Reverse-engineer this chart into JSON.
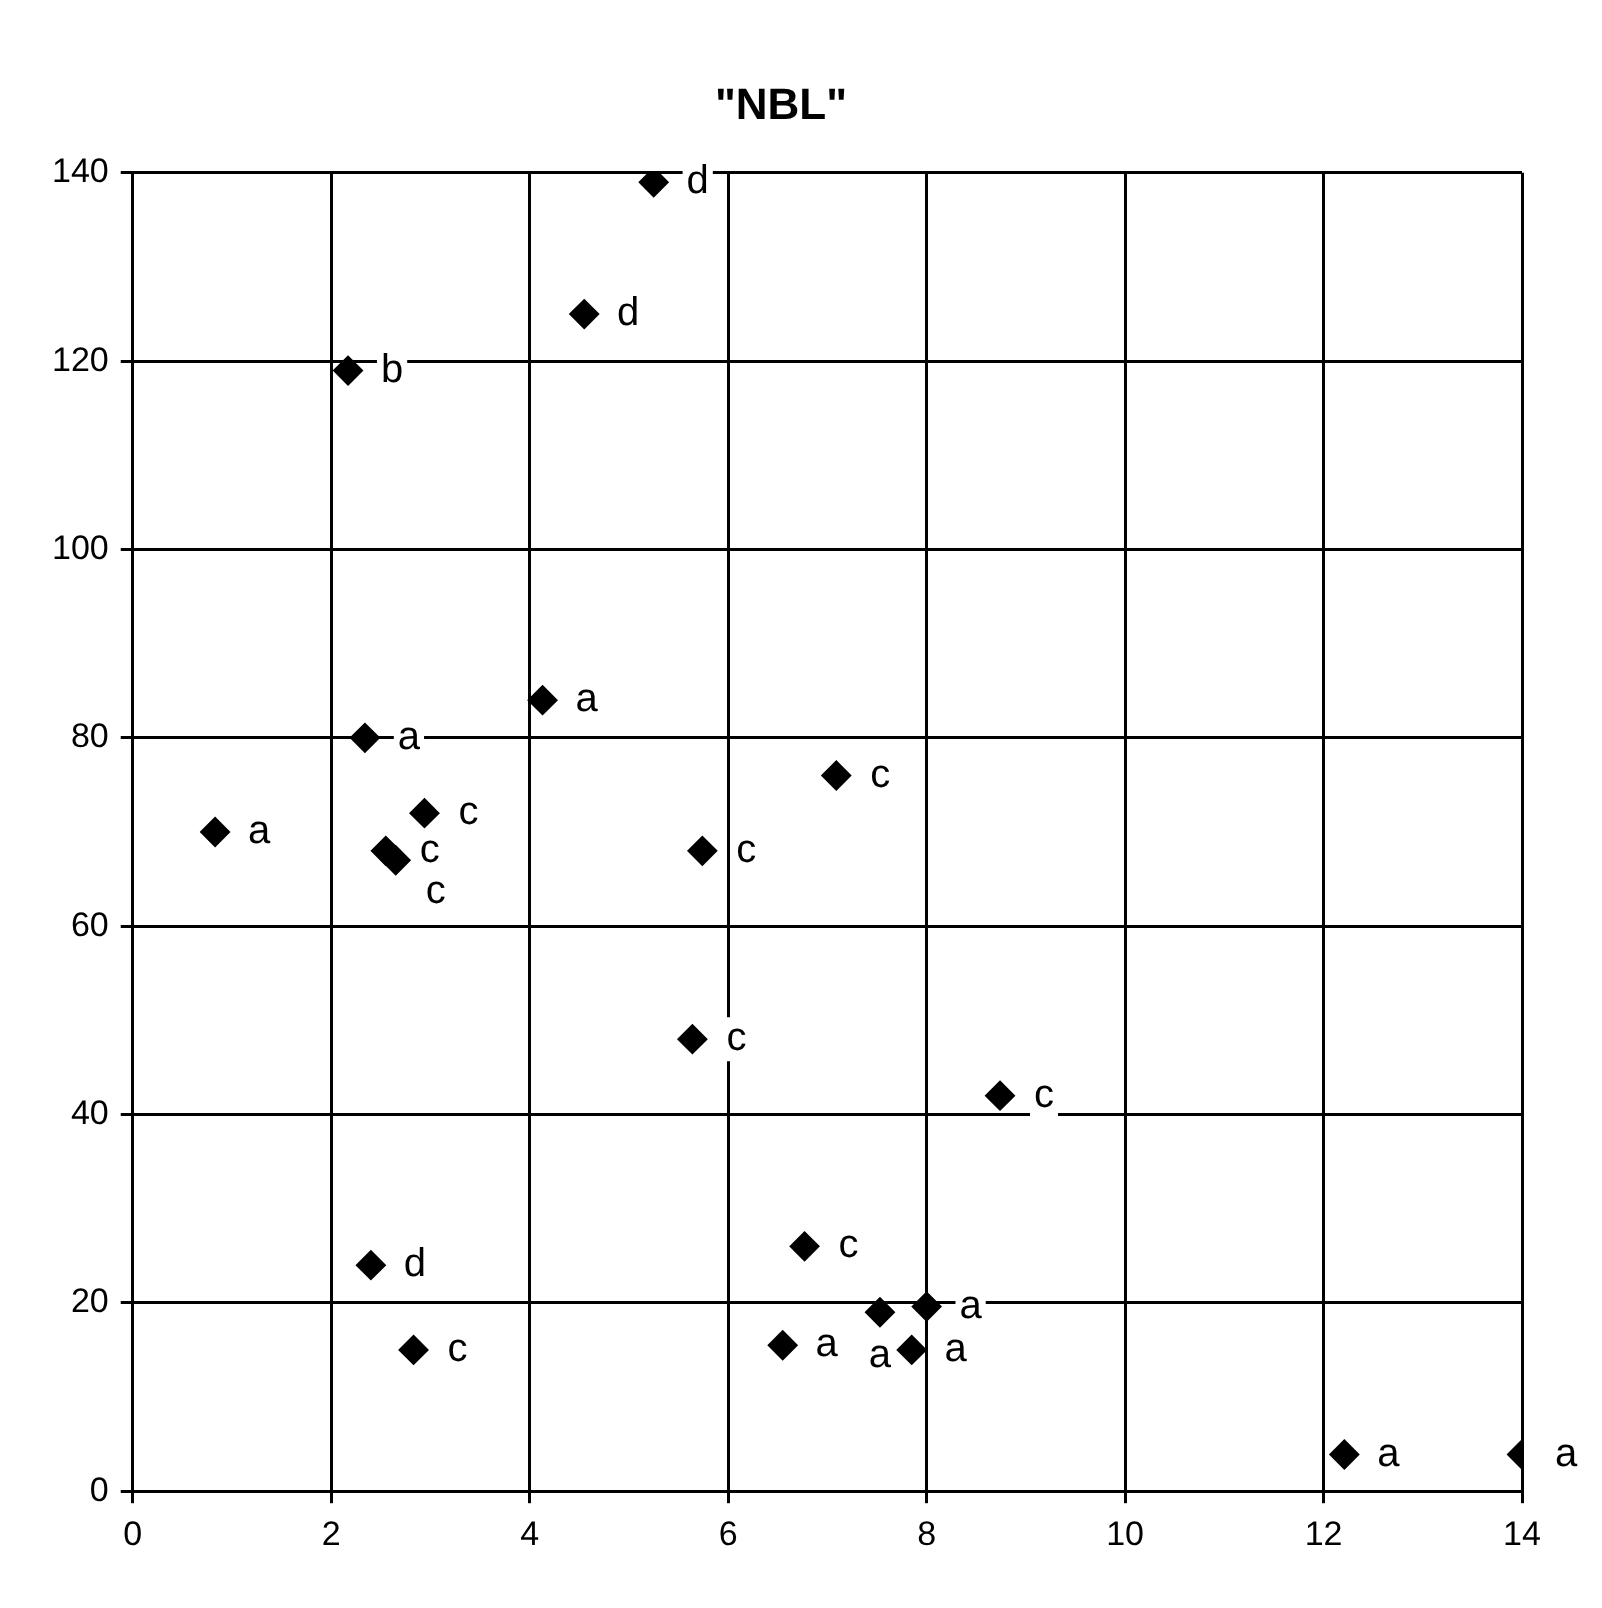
{
  "chart_data": {
    "type": "scatter",
    "title": "\"NBL\"",
    "x": [
      5.25,
      4.55,
      2.17,
      2.34,
      4.13,
      0.83,
      2.94,
      2.55,
      2.65,
      5.74,
      7.09,
      5.64,
      8.74,
      6.77,
      2.4,
      2.83,
      6.55,
      7.53,
      8.0,
      7.85,
      12.21,
      14.0
    ],
    "values": [
      139,
      125,
      119,
      80,
      84,
      70,
      72,
      68,
      67,
      68,
      76,
      48,
      42,
      26,
      24,
      15,
      15.5,
      19,
      19.6,
      15,
      3.9,
      3.9
    ],
    "color": "#000000",
    "marker": "diamond",
    "xlim": [
      0,
      14
    ],
    "xticks": [
      0,
      2,
      4,
      6,
      8,
      10,
      12,
      14
    ],
    "ylim": [
      0,
      140
    ],
    "yticks": [
      0,
      20,
      40,
      60,
      80,
      100,
      120,
      140
    ],
    "grid": true,
    "legend": false,
    "annotations": [
      {
        "text": "d",
        "x": 5.25,
        "y": 139
      },
      {
        "text": "d",
        "x": 4.55,
        "y": 125
      },
      {
        "text": "b",
        "x": 2.17,
        "y": 119
      },
      {
        "text": "a",
        "x": 2.34,
        "y": 80
      },
      {
        "text": "a",
        "x": 4.13,
        "y": 84
      },
      {
        "text": "a",
        "x": 0.83,
        "y": 70
      },
      {
        "text": "c",
        "x": 2.94,
        "y": 72
      },
      {
        "text": "c",
        "x": 2.55,
        "y": 68
      },
      {
        "text": "c",
        "x": 2.65,
        "y": 67
      },
      {
        "text": "c",
        "x": 5.74,
        "y": 68
      },
      {
        "text": "c",
        "x": 7.09,
        "y": 76
      },
      {
        "text": "c",
        "x": 5.64,
        "y": 48
      },
      {
        "text": "c",
        "x": 8.74,
        "y": 42
      },
      {
        "text": "c",
        "x": 6.77,
        "y": 26
      },
      {
        "text": "d",
        "x": 2.4,
        "y": 24
      },
      {
        "text": "c",
        "x": 2.83,
        "y": 15
      },
      {
        "text": "a",
        "x": 6.55,
        "y": 15.5
      },
      {
        "text": "a",
        "x": 7.53,
        "y": 19
      },
      {
        "text": "a",
        "x": 8.0,
        "y": 19.6
      },
      {
        "text": "a",
        "x": 7.85,
        "y": 15
      },
      {
        "text": "a",
        "x": 12.21,
        "y": 3.9
      },
      {
        "text": "a",
        "x": 14.0,
        "y": 3.9
      }
    ]
  }
}
